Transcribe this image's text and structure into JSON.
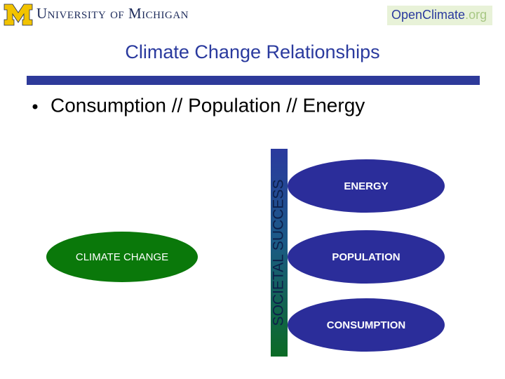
{
  "header": {
    "university": "University of Michigan",
    "logo_parts": [
      "Open",
      "Climate",
      ".org"
    ]
  },
  "slide": {
    "title": "Climate Change Relationships",
    "bullet": "Consumption // Population // Energy"
  },
  "diagram": {
    "left": "CLIMATE CHANGE",
    "bar": "SOCIETAL SUCCESS",
    "nodes": [
      "ENERGY",
      "POPULATION",
      "CONSUMPTION"
    ]
  }
}
